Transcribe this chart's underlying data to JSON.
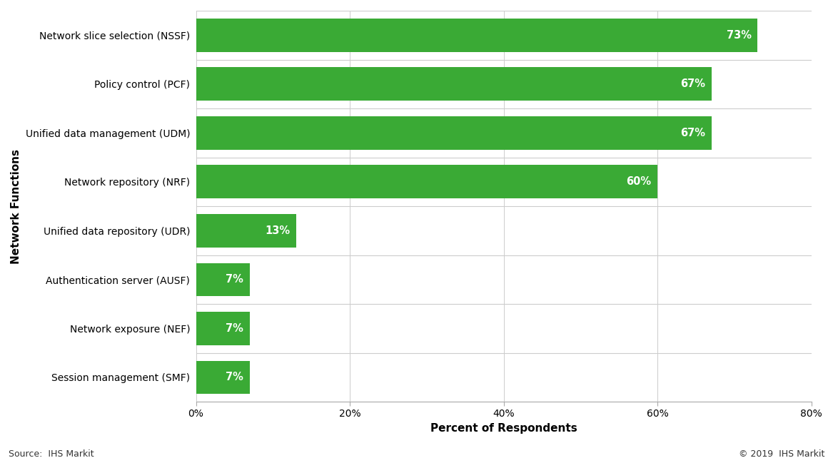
{
  "categories": [
    "Session management (SMF)",
    "Network exposure (NEF)",
    "Authentication server (AUSF)",
    "Unified data repository (UDR)",
    "Network repository (NRF)",
    "Unified data management (UDM)",
    "Policy control (PCF)",
    "Network slice selection (NSSF)"
  ],
  "values": [
    7,
    7,
    7,
    13,
    60,
    67,
    67,
    73
  ],
  "bar_color": "#3aaa35",
  "bar_labels": [
    "7%",
    "7%",
    "7%",
    "13%",
    "60%",
    "67%",
    "67%",
    "73%"
  ],
  "xlabel": "Percent of Respondents",
  "ylabel": "Network Functions",
  "xlim": [
    0,
    80
  ],
  "xticks": [
    0,
    20,
    40,
    60,
    80
  ],
  "xticklabels": [
    "0%",
    "20%",
    "40%",
    "60%",
    "80%"
  ],
  "source_left": "Source:  IHS Markit",
  "source_right": "© 2019  IHS Markit",
  "background_color": "#ffffff",
  "bar_height": 0.68,
  "label_fontsize": 10.5,
  "axis_label_fontsize": 11,
  "tick_fontsize": 10,
  "source_fontsize": 9,
  "separator_color": "#cccccc",
  "grid_color": "#cccccc",
  "spine_color": "#aaaaaa"
}
